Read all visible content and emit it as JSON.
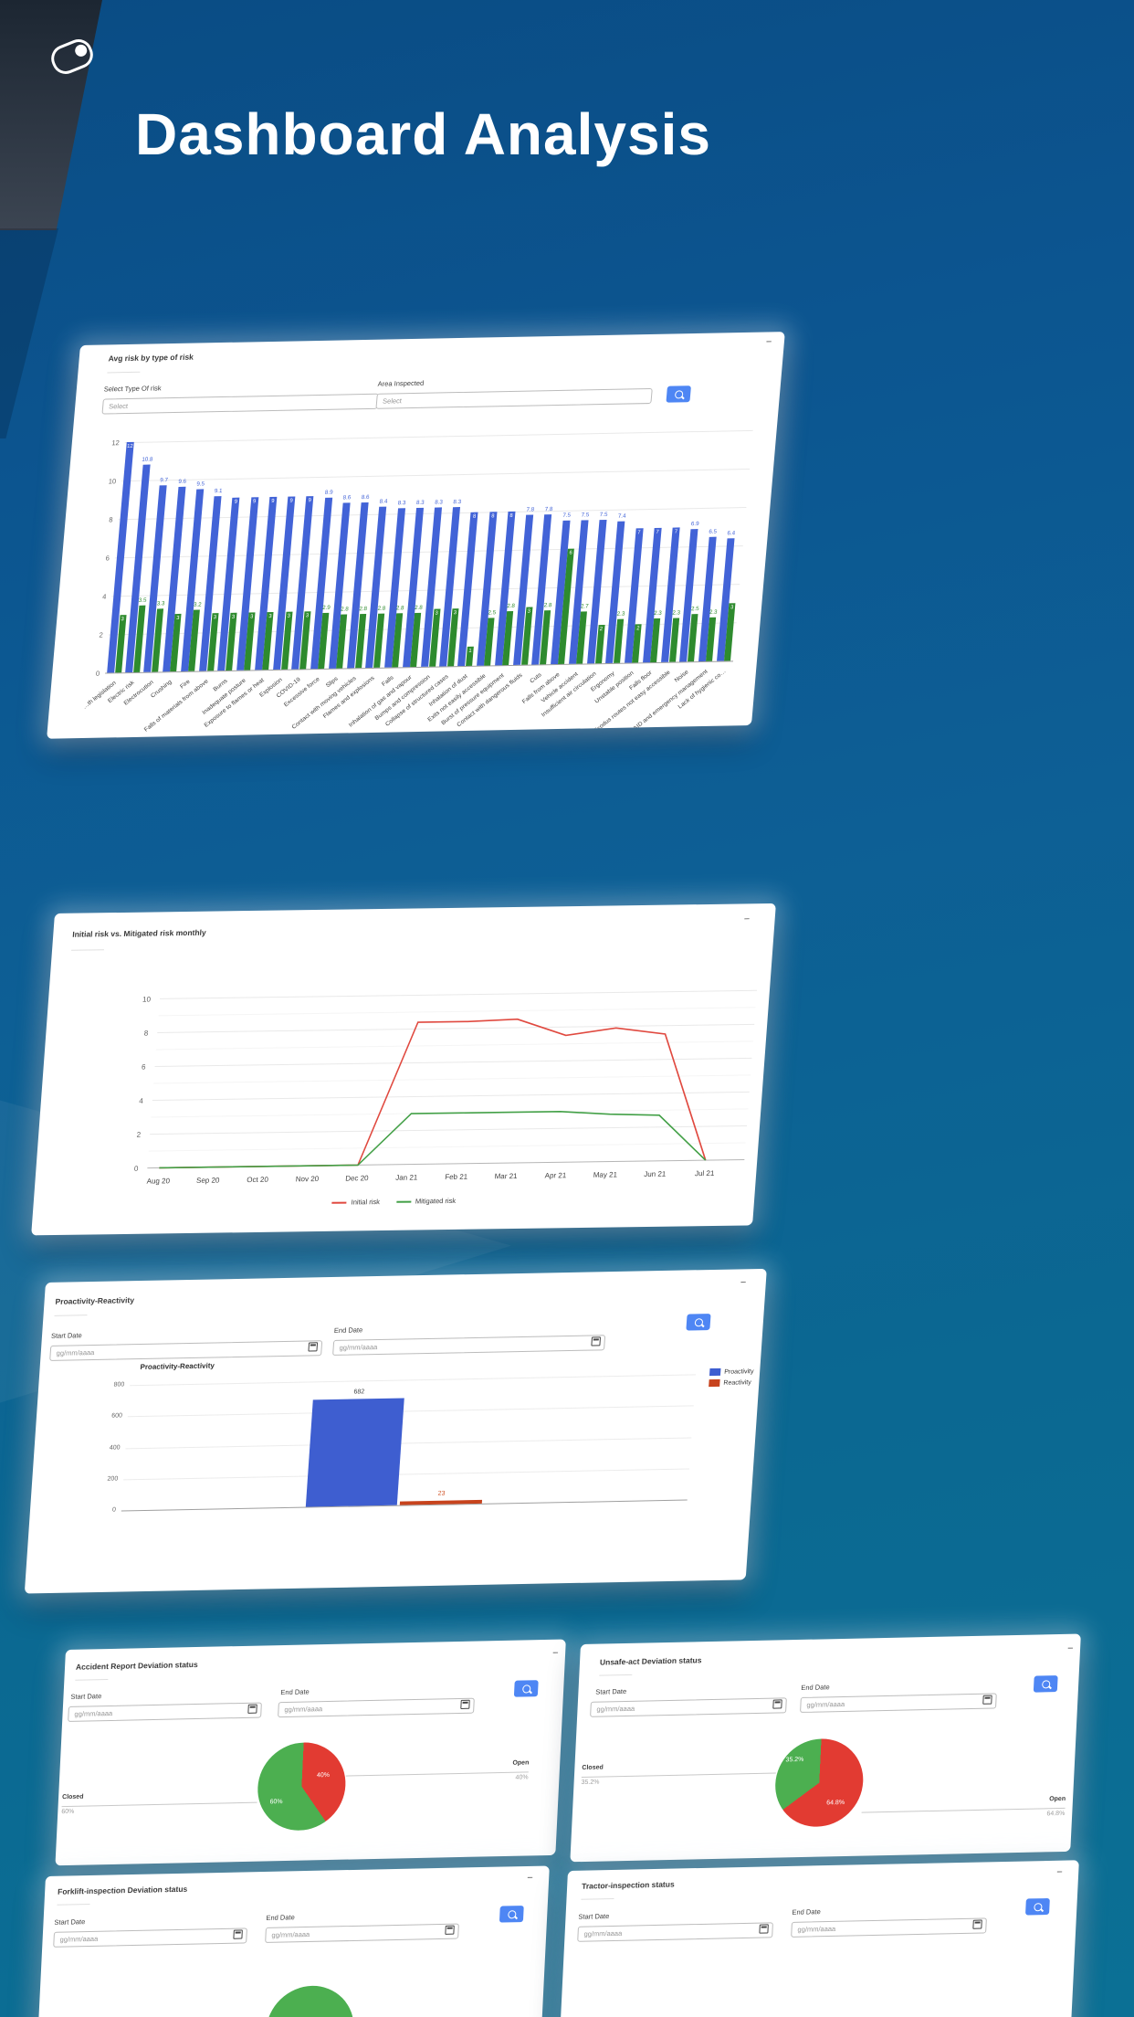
{
  "hero": {
    "title": "Dashboard Analysis"
  },
  "panels": {
    "avg_risk": {
      "title": "Avg risk by type of risk",
      "minimize": "−",
      "type_label": "Select Type Of risk",
      "type_placeholder": "Select",
      "area_label": "Area Inspected",
      "area_placeholder": "Select"
    },
    "monthly": {
      "title": "Initial risk vs. Mitigated risk monthly",
      "minimize": "−"
    },
    "proactivity": {
      "title": "Proactivity-Reactivity",
      "chart_title": "Proactivity-Reactivity",
      "minimize": "−",
      "start_label": "Start Date",
      "end_label": "End Date",
      "date_placeholder": "gg/mm/aaaa"
    },
    "accident": {
      "title": "Accident Report Deviation status",
      "minimize": "−",
      "start_label": "Start Date",
      "end_label": "End Date",
      "date_placeholder": "gg/mm/aaaa"
    },
    "unsafe": {
      "title": "Unsafe-act Deviation status",
      "minimize": "−",
      "start_label": "Start Date",
      "end_label": "End Date",
      "date_placeholder": "gg/mm/aaaa"
    },
    "forklift": {
      "title": "Forklift-inspection Deviation status",
      "minimize": "−",
      "start_label": "Start Date",
      "end_label": "End Date",
      "date_placeholder": "gg/mm/aaaa"
    },
    "tractor": {
      "title": "Tractor-inspection status",
      "minimize": "−",
      "start_label": "Start Date",
      "end_label": "End Date",
      "date_placeholder": "gg/mm/aaaa"
    }
  },
  "colors": {
    "accent_blue": "#4e86f4",
    "bar_blue": "#4263d7",
    "bar_green": "#2e8b2e",
    "pie_green": "#4caf50",
    "pie_red": "#e23b32",
    "reactivity_red": "#c7431d"
  },
  "chart_data": [
    {
      "id": "avg_risk",
      "type": "bar",
      "title": "Avg risk by type of risk",
      "ylim": [
        0,
        12
      ],
      "yticks": [
        0,
        2,
        4,
        6,
        8,
        10,
        12
      ],
      "grid": true,
      "categories": [
        "…th legislation",
        "Electric risk",
        "Electrocution",
        "Crushing",
        "Fire",
        "Falls of materials from above",
        "Burns",
        "Inadequate posture",
        "Exposure to flames or heat",
        "Explosion",
        "COVID-19",
        "Excessive force",
        "Slips",
        "Contact with moving vehicles",
        "Flames and explosions",
        "Falls",
        "Inhalation of gas and vapour",
        "Bumps and compression",
        "Collapse of structured cases",
        "Inhalation of dust",
        "Exits not easily accessible",
        "Burst of pressure equipment",
        "Contact with dangerous fluids",
        "Cuts",
        "Falls from above",
        "Vehicle accident",
        "Insufficient air circulation",
        "Ergonomy",
        "Unstable position",
        "Falls floor",
        "Exodus routes not easy accessible",
        "Noise",
        "First AID and emergency management",
        "Lack of hygienic co…"
      ],
      "series": [
        {
          "color": "#4263d7",
          "values": [
            12,
            10.8,
            9.7,
            9.6,
            9.5,
            9.1,
            9,
            9,
            9,
            9,
            9,
            8.9,
            8.6,
            8.6,
            8.4,
            8.3,
            8.3,
            8.3,
            8.3,
            8,
            8,
            8,
            7.8,
            7.8,
            7.5,
            7.5,
            7.5,
            7.4,
            7,
            7,
            7,
            6.9,
            6.5,
            6.4
          ]
        },
        {
          "color": "#2e8b2e",
          "values": [
            3,
            3.5,
            3.3,
            3,
            3.2,
            3,
            3,
            3,
            3,
            3,
            3,
            2.9,
            2.8,
            2.8,
            2.8,
            2.8,
            2.8,
            3,
            3,
            1,
            2.5,
            2.8,
            3,
            2.8,
            6,
            2.7,
            2,
            2.3,
            2,
            2.3,
            2.3,
            2.5,
            2.3,
            3
          ]
        }
      ]
    },
    {
      "id": "monthly",
      "type": "line",
      "title": "Initial risk vs. Mitigated risk monthly",
      "ylim": [
        0,
        10
      ],
      "yticks": [
        0,
        2,
        4,
        6,
        8,
        10
      ],
      "legend_position": "bottom",
      "x": [
        "Aug 20",
        "Sep 20",
        "Oct 20",
        "Nov 20",
        "Dec 20",
        "Jan 21",
        "Feb 21",
        "Mar 21",
        "Apr 21",
        "May 21",
        "Jun 21",
        "Jul 21"
      ],
      "series": [
        {
          "name": "Initial risk",
          "color": "#e0493f",
          "values": [
            0,
            0,
            0,
            0,
            0,
            8.4,
            8.4,
            8.5,
            7.5,
            7.9,
            7.5,
            0
          ]
        },
        {
          "name": "Mitigated risk",
          "color": "#43a047",
          "values": [
            0,
            0,
            0,
            0,
            0,
            3,
            3,
            3,
            3,
            2.8,
            2.7,
            0
          ]
        }
      ]
    },
    {
      "id": "proactivity",
      "type": "bar",
      "title": "Proactivity-Reactivity",
      "ylim": [
        0,
        800
      ],
      "yticks": [
        0,
        200,
        400,
        600,
        800
      ],
      "legend_position": "right",
      "categories": [
        "Proactivity",
        "Reactivity"
      ],
      "values": [
        682,
        23
      ],
      "colors": [
        "#3e5ed0",
        "#c7431d"
      ],
      "value_label_colors": [
        "#3c4043",
        "#cf4f22"
      ]
    },
    {
      "id": "accident_pie",
      "type": "pie",
      "slices": [
        {
          "label": "Open",
          "value": 40,
          "pct": "40%",
          "color": "#e23b32"
        },
        {
          "label": "Closed",
          "value": 60,
          "pct": "60%",
          "color": "#4caf50"
        }
      ]
    },
    {
      "id": "unsafe_pie",
      "type": "pie",
      "slices": [
        {
          "label": "Open",
          "value": 64.8,
          "pct": "64.8%",
          "color": "#e23b32"
        },
        {
          "label": "Closed",
          "value": 35.2,
          "pct": "35.2%",
          "color": "#4caf50"
        }
      ]
    }
  ]
}
